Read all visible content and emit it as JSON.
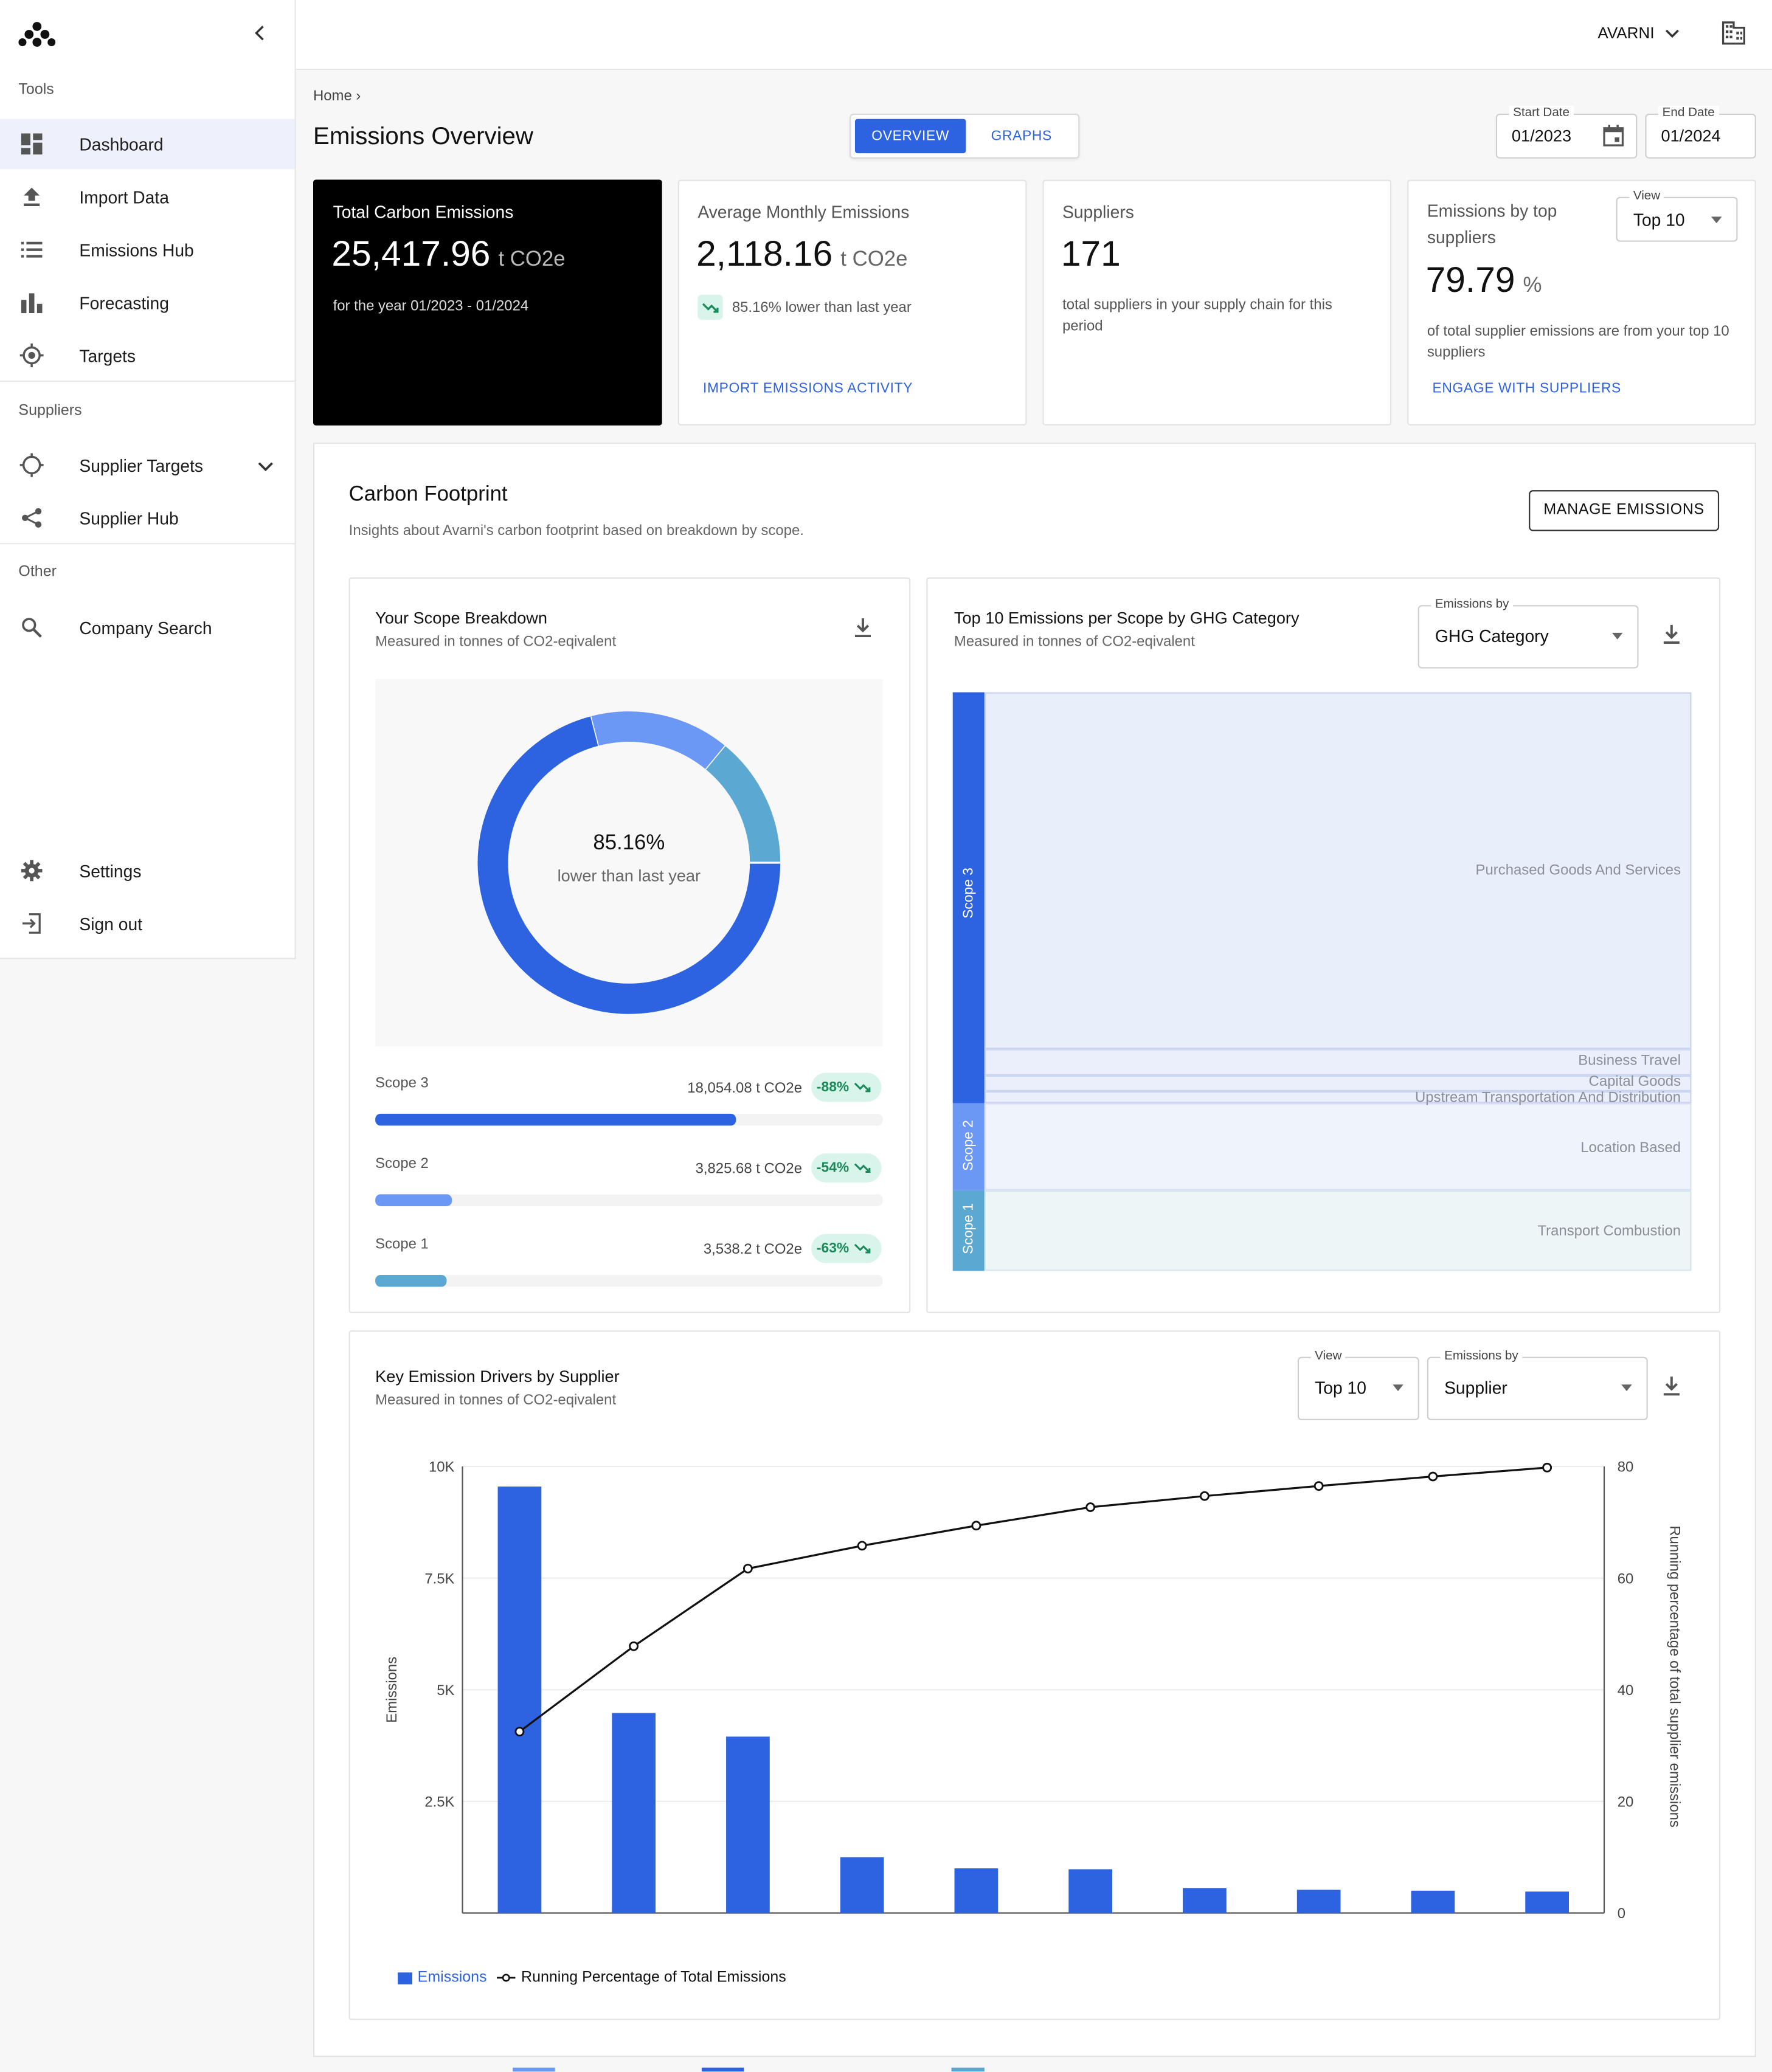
{
  "sidebar": {
    "sections": {
      "tools": "Tools",
      "suppliers": "Suppliers",
      "other": "Other"
    },
    "items": [
      {
        "label": "Dashboard",
        "icon": "dashboard-icon"
      },
      {
        "label": "Import Data",
        "icon": "upload-icon"
      },
      {
        "label": "Emissions Hub",
        "icon": "list-icon"
      },
      {
        "label": "Forecasting",
        "icon": "bar-chart-icon"
      },
      {
        "label": "Targets",
        "icon": "target-icon"
      },
      {
        "label": "Supplier Targets",
        "icon": "crosshair-icon"
      },
      {
        "label": "Supplier Hub",
        "icon": "share-icon"
      },
      {
        "label": "Company Search",
        "icon": "search-icon"
      },
      {
        "label": "Settings",
        "icon": "gear-icon"
      },
      {
        "label": "Sign out",
        "icon": "sign-out-icon"
      }
    ]
  },
  "topbar": {
    "org_name": "AVARNI"
  },
  "header": {
    "breadcrumb": "Home",
    "title": "Emissions Overview",
    "tabs": [
      "OVERVIEW",
      "GRAPHS"
    ],
    "start_date": {
      "label": "Start Date",
      "value": "01/2023"
    },
    "end_date": {
      "label": "End Date",
      "value": "01/2024"
    }
  },
  "kpis": {
    "total": {
      "title": "Total Carbon Emissions",
      "value": "25,417.96",
      "unit": "t CO2e",
      "sub": "for the year 01/2023 - 01/2024"
    },
    "avg": {
      "title": "Average Monthly Emissions",
      "value": "2,118.16",
      "unit": "t CO2e",
      "trend": "85.16% lower than last year",
      "link": "IMPORT EMISSIONS ACTIVITY"
    },
    "suppliers": {
      "title": "Suppliers",
      "value": "171",
      "sub": "total suppliers in your supply chain for this period"
    },
    "top": {
      "title": "Emissions by top suppliers",
      "value": "79.79",
      "unit": "%",
      "sub": "of total supplier emissions are from your top 10 suppliers",
      "link": "ENGAGE WITH SUPPLIERS",
      "view_label": "View",
      "view_value": "Top 10"
    }
  },
  "footprint": {
    "title": "Carbon Footprint",
    "subtitle": "Insights about Avarni's carbon footprint based on breakdown by scope.",
    "manage_button": "MANAGE EMISSIONS"
  },
  "scope_breakdown": {
    "title": "Your Scope Breakdown",
    "subtitle": "Measured in tonnes of CO2-eqivalent",
    "center_value": "85.16%",
    "center_label": "lower than last year",
    "scopes": [
      {
        "label": "Scope 3",
        "value": "18,054.08 t CO2e",
        "change": "-88%",
        "share": 0.71,
        "color": "#2d62e0"
      },
      {
        "label": "Scope 2",
        "value": "3,825.68 t CO2e",
        "change": "-54%",
        "share": 0.15,
        "color": "#6b98f5"
      },
      {
        "label": "Scope 1",
        "value": "3,538.2 t CO2e",
        "change": "-63%",
        "share": 0.14,
        "color": "#5ba9d2"
      }
    ]
  },
  "ghg": {
    "title": "Top 10 Emissions per Scope by GHG Category",
    "subtitle": "Measured in tonnes of CO2-eqivalent",
    "select_label": "Emissions by",
    "select_value": "GHG Category",
    "scope_labels": [
      "Scope 3",
      "Scope 2",
      "Scope 1"
    ],
    "categories": [
      "Purchased Goods And Services",
      "Business Travel",
      "Capital Goods",
      "Upstream Transportation And Distribution",
      "Location Based",
      "Transport Combustion"
    ]
  },
  "drivers": {
    "title": "Key Emission Drivers by Supplier",
    "subtitle": "Measured in tonnes of CO2-eqivalent",
    "view_label": "View",
    "view_value": "Top 10",
    "emissions_label": "Emissions by",
    "emissions_value": "Supplier"
  },
  "chart_data": {
    "type": "bar",
    "categories": [
      "",
      "",
      "",
      "",
      "",
      "",
      "",
      "",
      "",
      ""
    ],
    "series": [
      {
        "name": "Emissions",
        "type": "bar",
        "axis": "left",
        "color": "#2d62e0",
        "values": [
          9550,
          4480,
          3950,
          1250,
          1000,
          980,
          560,
          520,
          500,
          480
        ]
      },
      {
        "name": "Running Percentage of Total Emissions",
        "type": "line",
        "axis": "right",
        "color": "#111111",
        "values": [
          32.5,
          47.8,
          61.7,
          65.8,
          69.4,
          72.7,
          74.7,
          76.5,
          78.2,
          79.8
        ]
      }
    ],
    "ylabel": "Emissions",
    "y2label": "Running percentage of total supplier emissions",
    "ylim": [
      0,
      10000
    ],
    "y2lim": [
      0,
      80
    ],
    "yticks": [
      "10K",
      "7.5K",
      "5K",
      "2.5K"
    ],
    "yticks_values": [
      10000,
      7500,
      5000,
      2500
    ],
    "y2ticks": [
      "80",
      "60",
      "40",
      "20",
      "0"
    ],
    "y2ticks_values": [
      80,
      60,
      40,
      20,
      0
    ],
    "grid": true,
    "legend": "bottom-left"
  }
}
